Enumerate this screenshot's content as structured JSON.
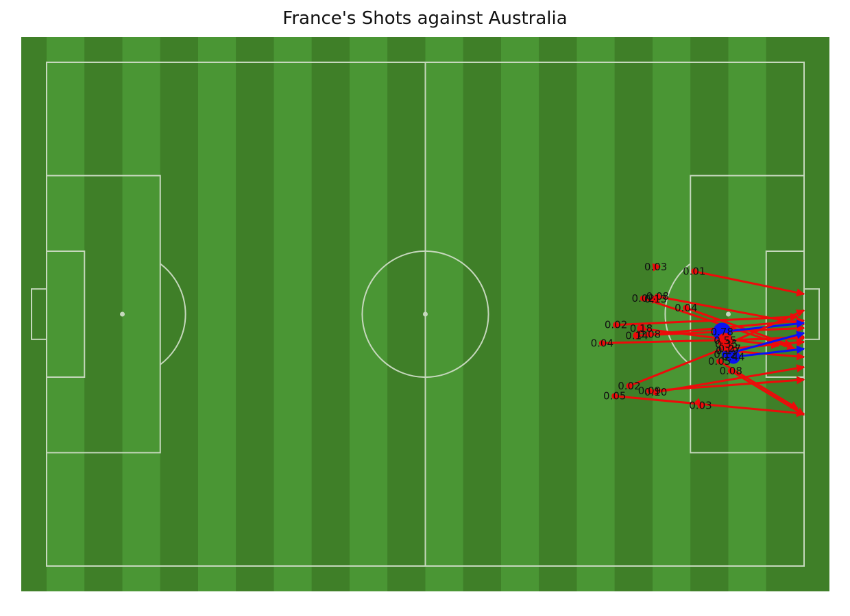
{
  "title": "France's Shots against Australia",
  "colors": {
    "grass_dark": "#3f7f28",
    "grass_light": "#4a9634",
    "lines": "#c6d8bd",
    "goal_shot": "#0a12f5",
    "miss_shot": "#ee0a0a"
  },
  "chart_data": {
    "type": "scatter",
    "title": "France's Shots against Australia",
    "pitch": {
      "length": 120,
      "width": 80,
      "attacking_direction": "right"
    },
    "legend": "none",
    "shots": [
      {
        "x": 102.6,
        "y": 46.8,
        "end_x": 120,
        "end_y": 43.2,
        "xg": "0.01",
        "outcome": "miss"
      },
      {
        "x": 96.5,
        "y": 47.5,
        "end_x": 97.2,
        "end_y": 47.6,
        "xg": "0.03",
        "outcome": "miss"
      },
      {
        "x": 94.5,
        "y": 42.5,
        "end_x": 118.5,
        "end_y": 34.5,
        "xg": "0.02",
        "outcome": "miss"
      },
      {
        "x": 96.8,
        "y": 42.8,
        "end_x": 120,
        "end_y": 38.4,
        "xg": "0.08",
        "outcome": "miss"
      },
      {
        "x": 96.5,
        "y": 42.4,
        "end_x": 97.0,
        "end_y": 42.5,
        "xg": "0.13",
        "outcome": "miss"
      },
      {
        "x": 101.3,
        "y": 41.0,
        "end_x": 118.0,
        "end_y": 35.0,
        "xg": "0.04",
        "outcome": "miss"
      },
      {
        "x": 90.2,
        "y": 38.3,
        "end_x": 119.0,
        "end_y": 39.6,
        "xg": "0.02",
        "outcome": "miss"
      },
      {
        "x": 94.2,
        "y": 37.7,
        "end_x": 116.0,
        "end_y": 35.0,
        "xg": "0.18",
        "outcome": "miss"
      },
      {
        "x": 95.5,
        "y": 36.8,
        "end_x": 120,
        "end_y": 39.0,
        "xg": "0.08",
        "outcome": "miss"
      },
      {
        "x": 93.5,
        "y": 36.6,
        "end_x": 120,
        "end_y": 37.8,
        "xg": "0.14",
        "outcome": "miss"
      },
      {
        "x": 88.0,
        "y": 35.4,
        "end_x": 120,
        "end_y": 36.2,
        "xg": "0.04",
        "outcome": "miss"
      },
      {
        "x": 107.0,
        "y": 37.2,
        "end_x": 120,
        "end_y": 38.6,
        "xg": "0.78",
        "outcome": "goal"
      },
      {
        "x": 107.5,
        "y": 35.8,
        "end_x": 120,
        "end_y": 36.4,
        "xg": "0.55",
        "outcome": "miss"
      },
      {
        "x": 107.7,
        "y": 35.2,
        "end_x": 120,
        "end_y": 40.6,
        "xg": "0.35",
        "outcome": "miss"
      },
      {
        "x": 108.2,
        "y": 34.5,
        "end_x": 120,
        "end_y": 35.6,
        "xg": "0.27",
        "outcome": "miss"
      },
      {
        "x": 107.8,
        "y": 34.2,
        "end_x": 120,
        "end_y": 33.2,
        "xg": "0.19",
        "outcome": "miss"
      },
      {
        "x": 107.5,
        "y": 33.6,
        "end_x": 120,
        "end_y": 37.0,
        "xg": "0.12",
        "outcome": "goal"
      },
      {
        "x": 108.8,
        "y": 33.2,
        "end_x": 120,
        "end_y": 34.5,
        "xg": "0.44",
        "outcome": "goal"
      },
      {
        "x": 106.6,
        "y": 32.5,
        "end_x": 119.0,
        "end_y": 25.0,
        "xg": "0.05",
        "outcome": "miss"
      },
      {
        "x": 108.4,
        "y": 31.0,
        "end_x": 120,
        "end_y": 24.0,
        "xg": "0.08",
        "outcome": "miss"
      },
      {
        "x": 95.5,
        "y": 27.8,
        "end_x": 120,
        "end_y": 29.6,
        "xg": "0.09",
        "outcome": "miss"
      },
      {
        "x": 90.0,
        "y": 27.0,
        "end_x": 120,
        "end_y": 24.2,
        "xg": "0.05",
        "outcome": "miss"
      },
      {
        "x": 96.5,
        "y": 27.6,
        "end_x": 120,
        "end_y": 31.6,
        "xg": "0.10",
        "outcome": "miss"
      },
      {
        "x": 103.6,
        "y": 25.5,
        "end_x": 103.7,
        "end_y": 25.4,
        "xg": "0.03",
        "outcome": "miss"
      },
      {
        "x": 92.3,
        "y": 28.6,
        "end_x": 108.3,
        "end_y": 35.0,
        "xg": "0.02",
        "outcome": "miss"
      }
    ]
  }
}
